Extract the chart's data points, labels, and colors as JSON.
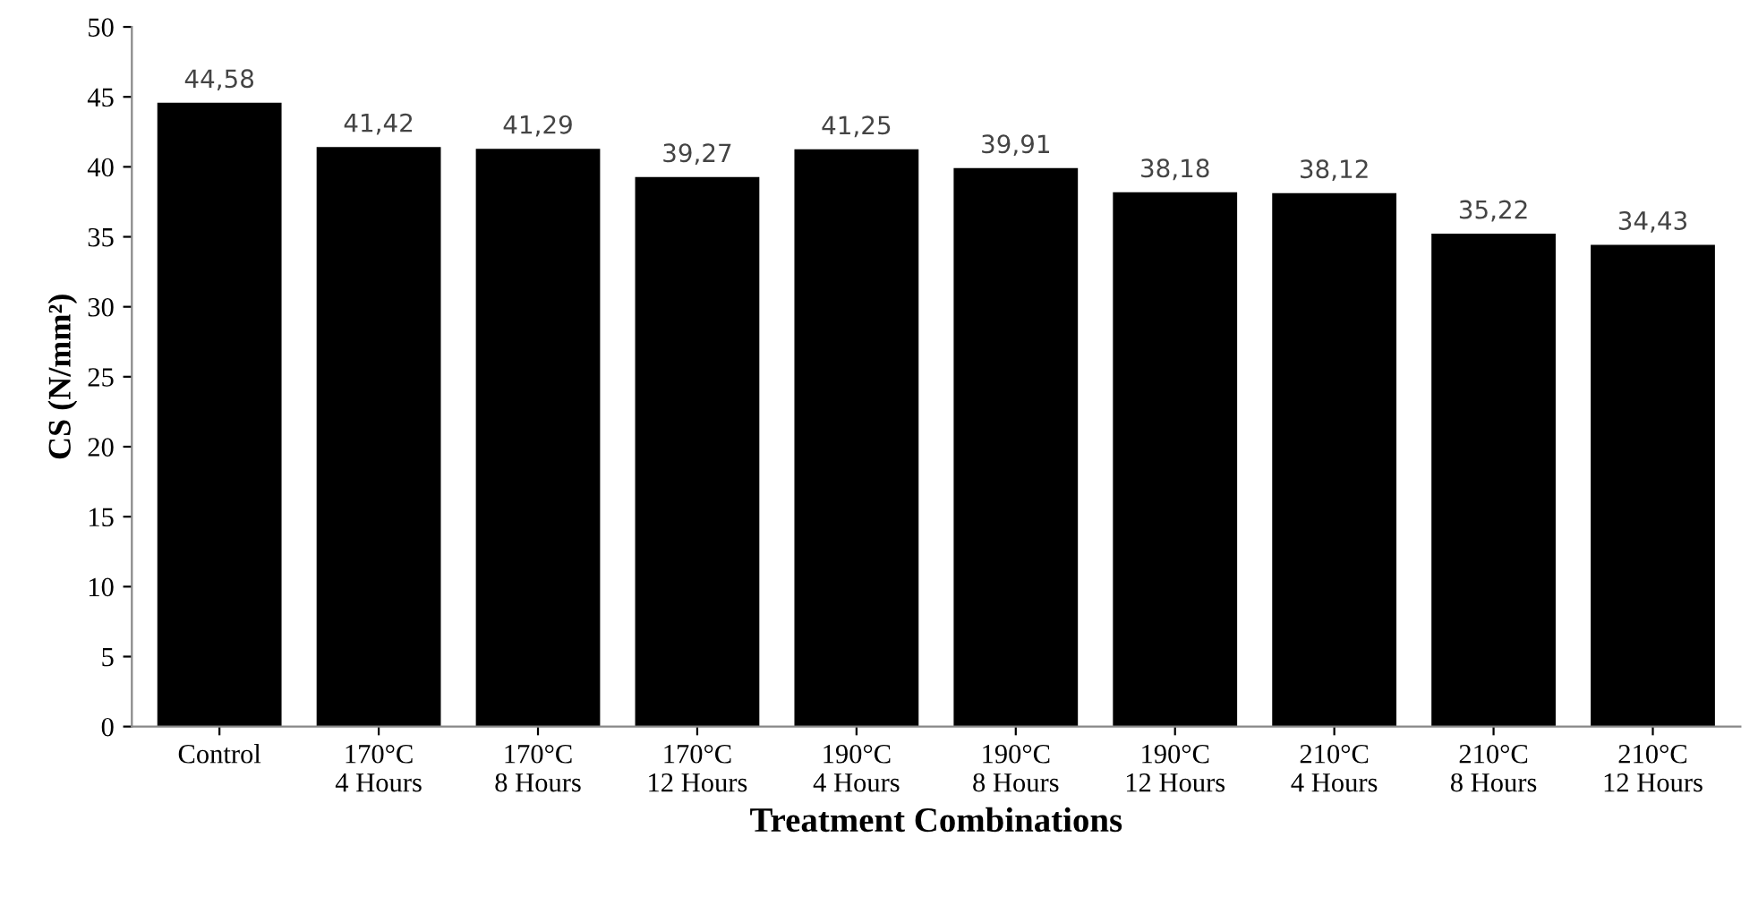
{
  "chart_data": {
    "type": "bar",
    "xlabel": "Treatment Combinations",
    "ylabel": "CS (N/mm²)",
    "categories": [
      "Control",
      "170°C\n4 Hours",
      "170°C\n8 Hours",
      "170°C\n12 Hours",
      "190°C\n4 Hours",
      "190°C\n8 Hours",
      "190°C\n12 Hours",
      "210°C\n4 Hours",
      "210°C\n8 Hours",
      "210°C\n12 Hours"
    ],
    "values": [
      44.58,
      41.42,
      41.29,
      39.27,
      41.25,
      39.91,
      38.18,
      38.12,
      35.22,
      34.43
    ],
    "value_labels": [
      "44,58",
      "41,42",
      "41,29",
      "39,27",
      "41,25",
      "39,91",
      "38,18",
      "38,12",
      "35,22",
      "34,43"
    ],
    "color": "#000000",
    "ylim": [
      0,
      50
    ],
    "yticks": [
      0,
      5,
      10,
      15,
      20,
      25,
      30,
      35,
      40,
      45,
      50
    ],
    "grid": false,
    "legend": false
  }
}
